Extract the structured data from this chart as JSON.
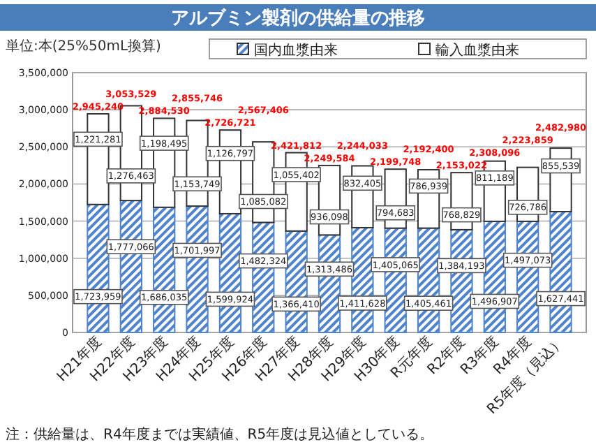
{
  "chart_data": {
    "type": "bar",
    "title": "アルブミン製剤の供給量の推移",
    "subtitle": "単位:本(25%50mL換算)",
    "categories": [
      "H21年度",
      "H22年度",
      "H23年度",
      "H24年度",
      "H25年度",
      "H26年度",
      "H27年度",
      "H28年度",
      "H29年度",
      "H30年度",
      "R元年度",
      "R2年度",
      "R3年度",
      "R4年度",
      "R5年度（見込）"
    ],
    "series": [
      {
        "name": "国内血漿由来",
        "color": "#4f83cc",
        "values": [
          1723959,
          1777066,
          1686035,
          1701997,
          1599924,
          1482324,
          1366410,
          1313486,
          1411628,
          1405065,
          1405461,
          1384193,
          1496907,
          1497073,
          1627441
        ],
        "value_labels": [
          "1,723,959",
          "1,777,066",
          "1,686,035",
          "1,701,997",
          "1,599,924",
          "1,482,324",
          "1,366,410",
          "1,313,486",
          "1,411,628",
          "1,405,065",
          "1,405,461",
          "1,384,193",
          "1,496,907",
          "1,497,073",
          "1,627,441"
        ]
      },
      {
        "name": "輸入血漿由来",
        "color": "#ffffff",
        "values": [
          1221281,
          1276463,
          1198495,
          1153749,
          1126797,
          1085082,
          1055402,
          936098,
          832405,
          794683,
          786939,
          768829,
          811189,
          726786,
          855539
        ],
        "value_labels": [
          "1,221,281",
          "1,276,463",
          "1,198,495",
          "1,153,749",
          "1,126,797",
          "1,085,082",
          "1,055,402",
          "936,098",
          "832,405",
          "794,683",
          "786,939",
          "768,829",
          "811,189",
          "726,786",
          "855,539"
        ]
      }
    ],
    "stacked": true,
    "totals": [
      "2,945,240",
      "3,053,529",
      "2,884,530",
      "2,855,746",
      "2,726,721",
      "2,567,406",
      "2,421,812",
      "2,249,584",
      "2,244,033",
      "2,199,748",
      "2,192,400",
      "2,153,022",
      "2,308,096",
      "2,223,859",
      "2,482,980"
    ],
    "ylim": [
      0,
      3500000
    ],
    "yticks": [
      {
        "value": 0,
        "label": "0"
      },
      {
        "value": 500000,
        "label": "500,000"
      },
      {
        "value": 1000000,
        "label": "1,000,000"
      },
      {
        "value": 1500000,
        "label": "1,500,000"
      },
      {
        "value": 2000000,
        "label": "2,000,000"
      },
      {
        "value": 2500000,
        "label": "2,500,000"
      },
      {
        "value": 3000000,
        "label": "3,000,000"
      },
      {
        "value": 3500000,
        "label": "3,500,000"
      }
    ],
    "grid": "y",
    "legend": "top",
    "annotations": [
      "注：供給量は、R4年度までは実績値、R5年度は見込値としている。"
    ]
  }
}
